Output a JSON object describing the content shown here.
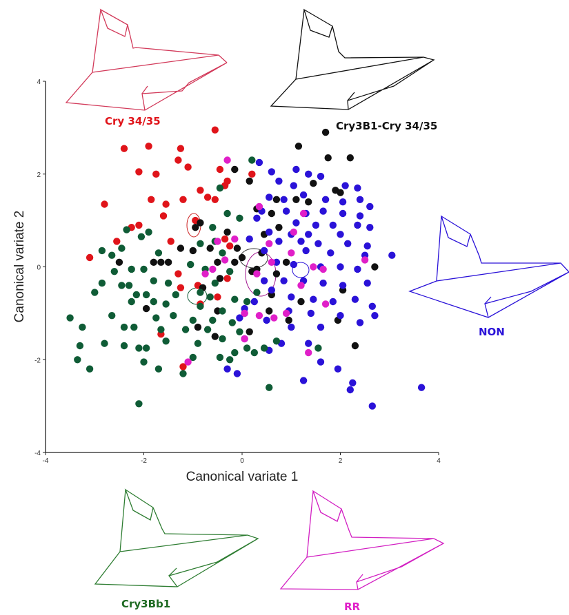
{
  "chart_data": {
    "type": "scatter",
    "xlabel": "Canonical variate 1",
    "ylabel": "Canonical variate 2",
    "xlim": [
      -4,
      4
    ],
    "ylim": [
      -4,
      4
    ],
    "x_ticks": [
      "-4",
      "-2",
      "0",
      "2",
      "4"
    ],
    "y_ticks": [
      "4",
      "2",
      "0",
      "-2",
      "-4"
    ],
    "grid": false,
    "series": [
      {
        "name": "Cry 34/35",
        "color": "#e0141a",
        "points": [
          [
            -2.4,
            2.55
          ],
          [
            -1.9,
            2.6
          ],
          [
            -1.25,
            2.55
          ],
          [
            -0.55,
            2.95
          ],
          [
            -2.8,
            1.35
          ],
          [
            -2.1,
            2.05
          ],
          [
            -1.75,
            2.0
          ],
          [
            -1.3,
            2.3
          ],
          [
            -1.1,
            2.15
          ],
          [
            -0.45,
            2.1
          ],
          [
            -1.85,
            1.45
          ],
          [
            -1.55,
            1.35
          ],
          [
            -0.85,
            1.65
          ],
          [
            -0.7,
            1.5
          ],
          [
            -0.35,
            1.75
          ],
          [
            0.2,
            2.0
          ],
          [
            -1.6,
            1.1
          ],
          [
            -1.2,
            1.45
          ],
          [
            -0.55,
            1.45
          ],
          [
            -2.1,
            0.9
          ],
          [
            -2.25,
            0.85
          ],
          [
            -1.45,
            0.55
          ],
          [
            -0.95,
            1.0
          ],
          [
            -0.35,
            0.6
          ],
          [
            -2.55,
            0.55
          ],
          [
            -0.25,
            0.45
          ],
          [
            -3.1,
            0.2
          ],
          [
            -1.3,
            -0.15
          ],
          [
            -1.25,
            -0.45
          ],
          [
            -0.9,
            -0.4
          ],
          [
            -0.85,
            -0.8
          ],
          [
            -0.3,
            -0.25
          ],
          [
            -1.65,
            -1.45
          ],
          [
            -1.2,
            -2.15
          ],
          [
            -0.5,
            -0.65
          ],
          [
            -0.3,
            1.85
          ]
        ]
      },
      {
        "name": "Cry3B1-Cry 34/35",
        "color": "#111111",
        "points": [
          [
            1.7,
            2.9
          ],
          [
            1.15,
            2.6
          ],
          [
            1.75,
            2.35
          ],
          [
            2.2,
            2.35
          ],
          [
            -0.15,
            2.1
          ],
          [
            0.15,
            1.85
          ],
          [
            1.45,
            1.8
          ],
          [
            1.9,
            1.65
          ],
          [
            2.0,
            1.6
          ],
          [
            0.7,
            1.45
          ],
          [
            1.1,
            1.45
          ],
          [
            1.35,
            1.4
          ],
          [
            0.3,
            1.25
          ],
          [
            0.6,
            1.15
          ],
          [
            -0.85,
            0.95
          ],
          [
            -0.95,
            0.85
          ],
          [
            0.75,
            0.85
          ],
          [
            -0.3,
            0.75
          ],
          [
            0.45,
            0.7
          ],
          [
            -0.1,
            0.4
          ],
          [
            -1.25,
            0.4
          ],
          [
            -1.0,
            0.35
          ],
          [
            -0.65,
            0.4
          ],
          [
            0.0,
            0.2
          ],
          [
            0.4,
            0.3
          ],
          [
            -2.5,
            0.1
          ],
          [
            -1.8,
            0.1
          ],
          [
            -1.65,
            0.1
          ],
          [
            -1.5,
            0.1
          ],
          [
            -0.5,
            0.1
          ],
          [
            0.9,
            0.1
          ],
          [
            -0.15,
            0.1
          ],
          [
            2.7,
            0.0
          ],
          [
            0.2,
            -0.1
          ],
          [
            0.3,
            -0.05
          ],
          [
            0.7,
            -0.15
          ],
          [
            -0.45,
            -0.25
          ],
          [
            -0.8,
            -0.45
          ],
          [
            0.6,
            -0.6
          ],
          [
            -0.5,
            -0.95
          ],
          [
            1.2,
            -0.75
          ],
          [
            2.05,
            -0.5
          ],
          [
            0.55,
            -0.95
          ],
          [
            0.05,
            -1.0
          ],
          [
            -0.9,
            -1.3
          ],
          [
            -1.95,
            -0.9
          ],
          [
            0.15,
            -1.4
          ],
          [
            -0.55,
            -1.5
          ],
          [
            1.95,
            -1.15
          ],
          [
            0.95,
            -1.15
          ],
          [
            2.3,
            -1.7
          ]
        ]
      },
      {
        "name": "NON",
        "color": "#2a12d8",
        "points": [
          [
            0.35,
            2.25
          ],
          [
            0.6,
            2.05
          ],
          [
            1.1,
            2.1
          ],
          [
            1.35,
            2.0
          ],
          [
            1.6,
            1.95
          ],
          [
            0.75,
            1.85
          ],
          [
            1.05,
            1.75
          ],
          [
            2.1,
            1.75
          ],
          [
            2.35,
            1.7
          ],
          [
            2.4,
            1.45
          ],
          [
            0.55,
            1.5
          ],
          [
            0.85,
            1.45
          ],
          [
            1.25,
            1.55
          ],
          [
            1.7,
            1.45
          ],
          [
            2.05,
            1.4
          ],
          [
            2.6,
            1.3
          ],
          [
            0.4,
            1.2
          ],
          [
            0.9,
            1.2
          ],
          [
            1.3,
            1.15
          ],
          [
            1.65,
            1.2
          ],
          [
            2.05,
            1.15
          ],
          [
            2.4,
            1.1
          ],
          [
            0.3,
            1.05
          ],
          [
            1.1,
            0.95
          ],
          [
            1.5,
            0.9
          ],
          [
            1.85,
            0.9
          ],
          [
            2.35,
            0.9
          ],
          [
            2.6,
            0.85
          ],
          [
            0.55,
            0.75
          ],
          [
            1.0,
            0.7
          ],
          [
            1.35,
            0.7
          ],
          [
            2.0,
            0.7
          ],
          [
            0.15,
            0.6
          ],
          [
            0.75,
            0.55
          ],
          [
            1.2,
            0.55
          ],
          [
            1.55,
            0.5
          ],
          [
            2.15,
            0.5
          ],
          [
            2.55,
            0.45
          ],
          [
            0.45,
            0.35
          ],
          [
            1.3,
            0.35
          ],
          [
            1.8,
            0.3
          ],
          [
            2.5,
            0.25
          ],
          [
            3.05,
            0.25
          ],
          [
            0.7,
            0.1
          ],
          [
            1.05,
            0.05
          ],
          [
            1.6,
            0.0
          ],
          [
            2.0,
            0.0
          ],
          [
            2.35,
            -0.05
          ],
          [
            0.45,
            -0.3
          ],
          [
            0.85,
            -0.3
          ],
          [
            1.25,
            -0.3
          ],
          [
            1.65,
            -0.35
          ],
          [
            2.05,
            -0.4
          ],
          [
            2.55,
            -0.35
          ],
          [
            0.6,
            -0.5
          ],
          [
            1.0,
            -0.65
          ],
          [
            1.45,
            -0.7
          ],
          [
            1.85,
            -0.75
          ],
          [
            2.3,
            -0.7
          ],
          [
            0.25,
            -0.75
          ],
          [
            0.95,
            -0.95
          ],
          [
            1.4,
            -1.0
          ],
          [
            2.65,
            -0.85
          ],
          [
            0.5,
            -1.15
          ],
          [
            1.0,
            -1.3
          ],
          [
            1.6,
            -1.3
          ],
          [
            2.0,
            -1.05
          ],
          [
            2.4,
            -1.2
          ],
          [
            2.7,
            -1.05
          ],
          [
            0.8,
            -1.65
          ],
          [
            1.35,
            -1.65
          ],
          [
            0.55,
            -1.8
          ],
          [
            1.6,
            -2.05
          ],
          [
            1.95,
            -2.2
          ],
          [
            2.25,
            -2.5
          ],
          [
            2.2,
            -2.65
          ],
          [
            2.65,
            -3.0
          ],
          [
            3.65,
            -2.6
          ],
          [
            1.25,
            -2.45
          ],
          [
            -0.1,
            -2.3
          ],
          [
            -0.3,
            -2.2
          ],
          [
            0.05,
            -1.55
          ],
          [
            -0.05,
            -1.1
          ],
          [
            0.05,
            -0.9
          ]
        ]
      },
      {
        "name": "Cry3Bb1",
        "color": "#0f5c36",
        "points": [
          [
            0.2,
            2.3
          ],
          [
            -0.45,
            1.7
          ],
          [
            -0.3,
            1.15
          ],
          [
            -0.05,
            1.05
          ],
          [
            -0.6,
            0.85
          ],
          [
            -2.35,
            0.8
          ],
          [
            -1.9,
            0.75
          ],
          [
            -2.05,
            0.65
          ],
          [
            -2.45,
            0.4
          ],
          [
            -1.7,
            0.3
          ],
          [
            -2.85,
            0.35
          ],
          [
            -2.65,
            0.25
          ],
          [
            -0.85,
            0.5
          ],
          [
            -0.55,
            0.55
          ],
          [
            -0.4,
            0.3
          ],
          [
            -2.6,
            -0.1
          ],
          [
            -2.25,
            -0.05
          ],
          [
            -2.0,
            -0.05
          ],
          [
            -1.05,
            0.05
          ],
          [
            -0.75,
            -0.05
          ],
          [
            -0.25,
            -0.1
          ],
          [
            -2.85,
            -0.35
          ],
          [
            -2.45,
            -0.4
          ],
          [
            -2.3,
            -0.4
          ],
          [
            -1.8,
            -0.3
          ],
          [
            -1.5,
            -0.35
          ],
          [
            -0.55,
            -0.35
          ],
          [
            -0.85,
            -0.55
          ],
          [
            -3.0,
            -0.55
          ],
          [
            -2.15,
            -0.6
          ],
          [
            -1.95,
            -0.6
          ],
          [
            -1.35,
            -0.6
          ],
          [
            -0.65,
            -0.65
          ],
          [
            -0.15,
            -0.7
          ],
          [
            -2.25,
            -0.75
          ],
          [
            -1.8,
            -0.75
          ],
          [
            -1.55,
            -0.8
          ],
          [
            -0.85,
            -0.85
          ],
          [
            -0.4,
            -0.95
          ],
          [
            -3.5,
            -1.1
          ],
          [
            -2.65,
            -1.05
          ],
          [
            -1.75,
            -1.1
          ],
          [
            -1.4,
            -1.05
          ],
          [
            -1.0,
            -1.15
          ],
          [
            -0.6,
            -1.15
          ],
          [
            -0.2,
            -1.2
          ],
          [
            -3.25,
            -1.3
          ],
          [
            -2.4,
            -1.3
          ],
          [
            -2.2,
            -1.3
          ],
          [
            -1.65,
            -1.35
          ],
          [
            -1.15,
            -1.35
          ],
          [
            -0.7,
            -1.35
          ],
          [
            -0.05,
            -1.4
          ],
          [
            -2.8,
            -1.65
          ],
          [
            -2.4,
            -1.7
          ],
          [
            -2.1,
            -1.75
          ],
          [
            -1.95,
            -1.75
          ],
          [
            -1.55,
            -1.6
          ],
          [
            -0.9,
            -1.65
          ],
          [
            -0.4,
            -1.55
          ],
          [
            -3.3,
            -1.7
          ],
          [
            -3.35,
            -2.0
          ],
          [
            -3.1,
            -2.2
          ],
          [
            -2.0,
            -2.05
          ],
          [
            -1.7,
            -2.2
          ],
          [
            -1.0,
            -1.95
          ],
          [
            -0.45,
            -1.95
          ],
          [
            -0.15,
            -1.85
          ],
          [
            -0.25,
            -2.0
          ],
          [
            0.1,
            -1.75
          ],
          [
            0.25,
            -1.85
          ],
          [
            0.45,
            -1.75
          ],
          [
            0.7,
            -1.6
          ],
          [
            1.55,
            -1.75
          ],
          [
            -1.2,
            -2.3
          ],
          [
            0.55,
            -2.6
          ],
          [
            -2.1,
            -2.95
          ],
          [
            0.1,
            -0.75
          ],
          [
            0.3,
            -0.55
          ]
        ]
      },
      {
        "name": "RR",
        "color": "#e01fc8",
        "points": [
          [
            -0.3,
            2.3
          ],
          [
            0.35,
            1.3
          ],
          [
            1.25,
            1.15
          ],
          [
            1.05,
            0.75
          ],
          [
            -0.15,
            0.6
          ],
          [
            -0.5,
            0.55
          ],
          [
            0.55,
            0.5
          ],
          [
            1.0,
            0.3
          ],
          [
            2.5,
            0.15
          ],
          [
            -0.35,
            0.15
          ],
          [
            0.6,
            0.1
          ],
          [
            1.45,
            0.0
          ],
          [
            1.65,
            -0.05
          ],
          [
            0.3,
            -0.15
          ],
          [
            -0.75,
            -0.15
          ],
          [
            1.2,
            -0.4
          ],
          [
            1.7,
            -0.8
          ],
          [
            0.05,
            -1.0
          ],
          [
            0.35,
            -1.05
          ],
          [
            0.65,
            -1.1
          ],
          [
            0.9,
            -1.0
          ],
          [
            0.05,
            -1.55
          ],
          [
            -1.1,
            -2.05
          ],
          [
            1.35,
            -1.85
          ],
          [
            -0.6,
            -0.05
          ]
        ]
      }
    ],
    "wireframe_labels": [
      "Cry 34/35",
      "Cry3B1-Cry 34/35",
      "NON",
      "Cry3Bb1",
      "RR"
    ]
  }
}
